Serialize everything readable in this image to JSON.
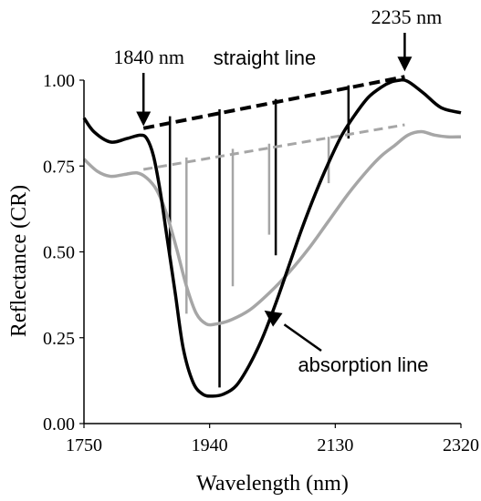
{
  "chart_data": {
    "type": "line",
    "xlabel": "Wavelength (nm)",
    "ylabel": "Reflectance (CR)",
    "xlim": [
      1750,
      2320
    ],
    "ylim": [
      0.0,
      1.0
    ],
    "x_ticks": [
      "1750",
      "1940",
      "2130",
      "2320"
    ],
    "y_ticks": [
      "0.00",
      "0.25",
      "0.50",
      "0.75",
      "1.00"
    ],
    "grid": false,
    "legend": "none",
    "colors": {
      "black": "#000000",
      "gray": "#a6a6a6"
    },
    "series": [
      {
        "color": "#000000",
        "style": "solid",
        "x": [
          1750,
          1765,
          1790,
          1815,
          1835,
          1845,
          1855,
          1865,
          1875,
          1888,
          1900,
          1915,
          1930,
          1945,
          1960,
          1980,
          2000,
          2020,
          2040,
          2060,
          2080,
          2100,
          2120,
          2140,
          2160,
          2180,
          2200,
          2215,
          2228,
          2235,
          2245,
          2265,
          2290,
          2320
        ],
        "y": [
          0.89,
          0.85,
          0.82,
          0.83,
          0.84,
          0.83,
          0.78,
          0.68,
          0.55,
          0.38,
          0.22,
          0.12,
          0.085,
          0.08,
          0.085,
          0.11,
          0.17,
          0.25,
          0.35,
          0.46,
          0.57,
          0.67,
          0.76,
          0.84,
          0.9,
          0.95,
          0.98,
          0.995,
          1.0,
          1.0,
          0.99,
          0.96,
          0.92,
          0.905
        ]
      },
      {
        "color": "#a6a6a6",
        "style": "solid",
        "x": [
          1750,
          1770,
          1790,
          1810,
          1830,
          1845,
          1860,
          1875,
          1890,
          1905,
          1920,
          1935,
          1950,
          1970,
          2000,
          2030,
          2060,
          2090,
          2120,
          2150,
          2180,
          2200,
          2220,
          2240,
          2260,
          2280,
          2300,
          2320
        ],
        "y": [
          0.77,
          0.735,
          0.72,
          0.725,
          0.73,
          0.715,
          0.68,
          0.61,
          0.51,
          0.4,
          0.32,
          0.29,
          0.29,
          0.3,
          0.33,
          0.38,
          0.44,
          0.51,
          0.59,
          0.67,
          0.74,
          0.78,
          0.81,
          0.84,
          0.85,
          0.84,
          0.835,
          0.835
        ]
      }
    ],
    "continuum_lines": [
      {
        "color": "#000000",
        "style": "dashed",
        "x": [
          1840,
          2235
        ],
        "y": [
          0.86,
          1.01
        ]
      },
      {
        "color": "#a6a6a6",
        "style": "dashed",
        "x": [
          1840,
          2235
        ],
        "y": [
          0.74,
          0.87
        ]
      }
    ],
    "depth_lines": [
      {
        "color": "#000000",
        "x": 1880,
        "y_top": 0.895,
        "y_bottom": 0.49
      },
      {
        "color": "#000000",
        "x": 1955,
        "y_top": 0.915,
        "y_bottom": 0.105
      },
      {
        "color": "#000000",
        "x": 2040,
        "y_top": 0.945,
        "y_bottom": 0.49
      },
      {
        "color": "#000000",
        "x": 2150,
        "y_top": 0.985,
        "y_bottom": 0.83
      },
      {
        "color": "#a6a6a6",
        "x": 1905,
        "y_top": 0.775,
        "y_bottom": 0.32
      },
      {
        "color": "#a6a6a6",
        "x": 1975,
        "y_top": 0.8,
        "y_bottom": 0.4
      },
      {
        "color": "#a6a6a6",
        "x": 2030,
        "y_top": 0.815,
        "y_bottom": 0.55
      },
      {
        "color": "#a6a6a6",
        "x": 2120,
        "y_top": 0.835,
        "y_bottom": 0.7
      }
    ],
    "annotations": [
      {
        "text": "1840 nm",
        "type": "arrow",
        "x": 1840,
        "y": 0.85
      },
      {
        "text": "2235 nm",
        "type": "arrow",
        "x": 2235,
        "y": 1.01
      },
      {
        "text": "straight line",
        "type": "label",
        "x": 1950,
        "y": 1.03
      },
      {
        "text": "absorption line",
        "type": "arrow",
        "x": 2020,
        "y": 0.34
      }
    ]
  }
}
